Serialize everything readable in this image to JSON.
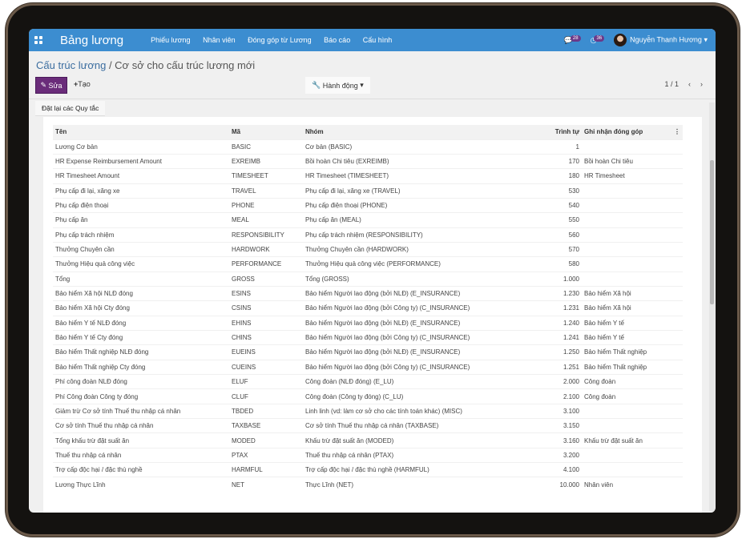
{
  "nav": {
    "brand": "Bảng lương",
    "menu": [
      "Phiếu lương",
      "Nhân viên",
      "Đóng góp từ Lương",
      "Báo cáo",
      "Cấu hình"
    ],
    "messages_count": "28",
    "activities_count": "36",
    "user": "Nguyễn Thanh Hương",
    "accent": "#3c8dd0"
  },
  "breadcrumb": {
    "parent": "Cấu trúc lương",
    "current": "Cơ sở cho cấu trúc lương mới"
  },
  "toolbar": {
    "edit": "Sửa",
    "create": "Tạo",
    "action": "Hành động",
    "pager": "1 / 1"
  },
  "tab": "Đặt lại các Quy tắc",
  "table": {
    "headers": [
      "Tên",
      "Mã",
      "Nhóm",
      "Trình tự",
      "Ghi nhận đóng góp"
    ],
    "rows": [
      [
        "Lương Cơ bản",
        "BASIC",
        "Cơ bản (BASIC)",
        "1",
        ""
      ],
      [
        "HR Expense Reimbursement Amount",
        "EXREIMB",
        "Bồi hoàn Chi tiêu (EXREIMB)",
        "170",
        "Bồi hoàn Chi tiêu"
      ],
      [
        "HR Timesheet Amount",
        "TIMESHEET",
        "HR Timesheet (TIMESHEET)",
        "180",
        "HR Timesheet"
      ],
      [
        "Phụ cấp đi lại, xăng xe",
        "TRAVEL",
        "Phụ cấp đi lại, xăng xe (TRAVEL)",
        "530",
        ""
      ],
      [
        "Phụ cấp điện thoại",
        "PHONE",
        "Phụ cấp điện thoại (PHONE)",
        "540",
        ""
      ],
      [
        "Phụ cấp ăn",
        "MEAL",
        "Phụ cấp ăn (MEAL)",
        "550",
        ""
      ],
      [
        "Phụ cấp trách nhiệm",
        "RESPONSIBILITY",
        "Phụ cấp trách nhiệm (RESPONSIBILITY)",
        "560",
        ""
      ],
      [
        "Thưởng Chuyên cần",
        "HARDWORK",
        "Thưởng Chuyên cần (HARDWORK)",
        "570",
        ""
      ],
      [
        "Thưởng Hiệu quả công việc",
        "PERFORMANCE",
        "Thưởng Hiệu quả công việc (PERFORMANCE)",
        "580",
        ""
      ],
      [
        "Tổng",
        "GROSS",
        "Tổng (GROSS)",
        "1.000",
        ""
      ],
      [
        "Bảo hiểm Xã hội NLĐ đóng",
        "ESINS",
        "Bảo hiểm Người lao động (bởi NLĐ) (E_INSURANCE)",
        "1.230",
        "Bảo hiểm Xã hội"
      ],
      [
        "Bảo hiểm Xã hội Cty đóng",
        "CSINS",
        "Bảo hiểm Người lao động (bởi Công ty) (C_INSURANCE)",
        "1.231",
        "Bảo hiểm Xã hội"
      ],
      [
        "Bảo hiểm Y tế NLĐ đóng",
        "EHINS",
        "Bảo hiểm Người lao động (bởi NLĐ) (E_INSURANCE)",
        "1.240",
        "Bảo hiểm Y tế"
      ],
      [
        "Bảo hiểm Y tế Cty đóng",
        "CHINS",
        "Bảo hiểm Người lao động (bởi Công ty) (C_INSURANCE)",
        "1.241",
        "Bảo hiểm Y tế"
      ],
      [
        "Bảo hiểm Thất nghiệp NLĐ đóng",
        "EUEINS",
        "Bảo hiểm Người lao động (bởi NLĐ) (E_INSURANCE)",
        "1.250",
        "Bảo hiểm Thất nghiệp"
      ],
      [
        "Bảo hiểm Thất nghiệp Cty đóng",
        "CUEINS",
        "Bảo hiểm Người lao động (bởi Công ty) (C_INSURANCE)",
        "1.251",
        "Bảo hiểm Thất nghiệp"
      ],
      [
        "Phí công đoàn NLĐ đóng",
        "ELUF",
        "Công đoàn (NLĐ đóng) (E_LU)",
        "2.000",
        "Công đoàn"
      ],
      [
        "Phí Công đoàn Công ty đóng",
        "CLUF",
        "Công đoàn (Công ty đóng) (C_LU)",
        "2.100",
        "Công đoàn"
      ],
      [
        "Giảm trừ Cơ sở tính Thuế thu nhập cá nhân",
        "TBDED",
        "Linh linh (vd: làm cơ sở cho các tính toán khác) (MISC)",
        "3.100",
        ""
      ],
      [
        "Cơ sở tính Thuế thu nhập cá nhân",
        "TAXBASE",
        "Cơ sở tính Thuế thu nhập cá nhân (TAXBASE)",
        "3.150",
        ""
      ],
      [
        "Tổng khấu trừ đặt suất ăn",
        "MODED",
        "Khấu trừ đặt suất ăn (MODED)",
        "3.160",
        "Khấu trừ đặt suất ăn"
      ],
      [
        "Thuế thu nhập cá nhân",
        "PTAX",
        "Thuế thu nhập cá nhân (PTAX)",
        "3.200",
        ""
      ],
      [
        "Trợ cấp độc hại / đặc thù nghề",
        "HARMFUL",
        "Trợ cấp độc hại / đặc thù nghề (HARMFUL)",
        "4.100",
        ""
      ],
      [
        "Lương Thực Lĩnh",
        "NET",
        "Thực Lĩnh (NET)",
        "10.000",
        "Nhân viên"
      ]
    ]
  }
}
